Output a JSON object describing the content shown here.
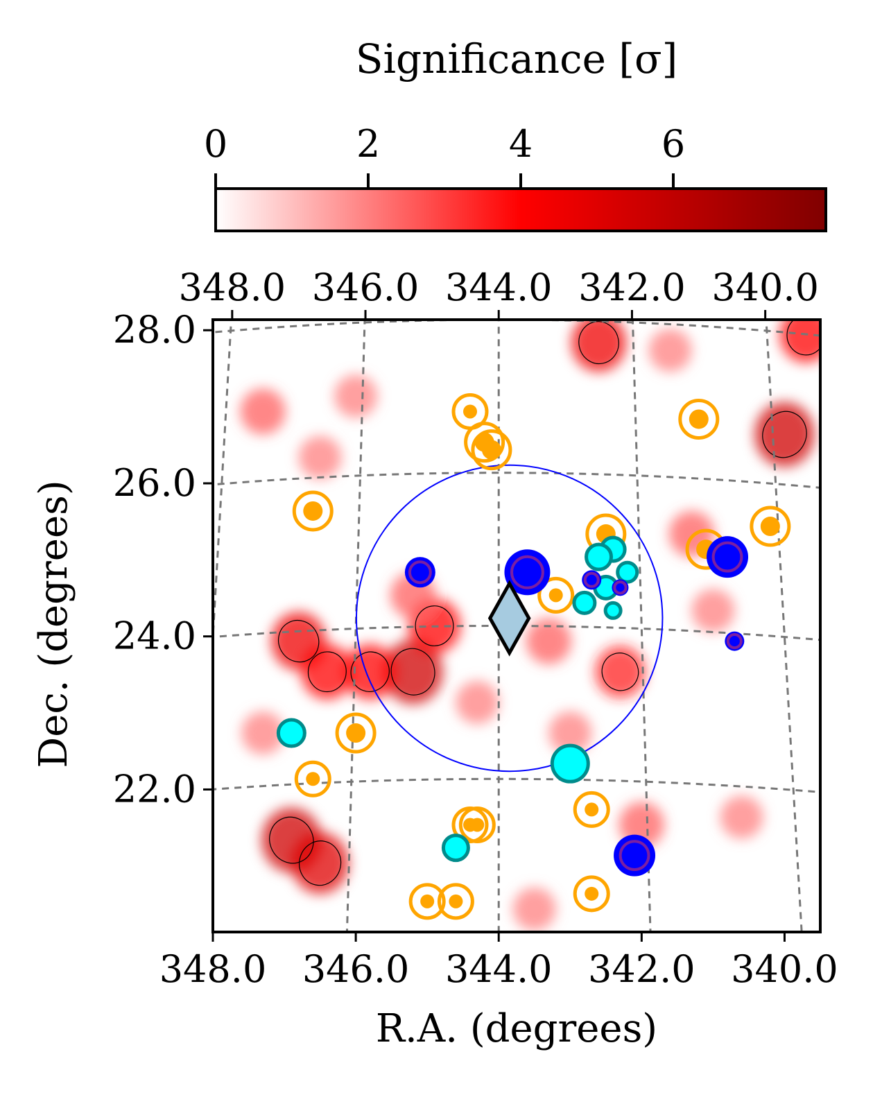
{
  "chart_data": {
    "type": "scatter",
    "colorbar": {
      "label": "Significance [σ]",
      "range": [
        0,
        8
      ],
      "ticks": [
        0,
        2,
        4,
        6
      ],
      "colors": [
        "#ffffff",
        "#ff0000",
        "#800000"
      ]
    },
    "xlabel": "R.A. (degrees)",
    "ylabel": "Dec. (degrees)",
    "xlim": [
      348.0,
      339.5
    ],
    "ylim": [
      20.0,
      28.0
    ],
    "bottom_ticks": [
      "348.0",
      "346.0",
      "344.0",
      "342.0",
      "340.0"
    ],
    "top_ticks": [
      "348.0",
      "346.0",
      "344.0",
      "342.0",
      "340.0"
    ],
    "yticks": [
      "22.0",
      "24.0",
      "26.0",
      "28.0"
    ],
    "grid": true,
    "significance_blobs": [
      {
        "ra": 346.8,
        "dec": 23.8,
        "level": 4.5,
        "contour": true
      },
      {
        "ra": 346.4,
        "dec": 23.4,
        "level": 4.0,
        "contour": true
      },
      {
        "ra": 345.2,
        "dec": 23.4,
        "level": 5.5,
        "contour": true
      },
      {
        "ra": 345.8,
        "dec": 23.4,
        "level": 4.0,
        "contour": true
      },
      {
        "ra": 344.9,
        "dec": 24.0,
        "level": 4.0,
        "contour": true
      },
      {
        "ra": 346.9,
        "dec": 21.2,
        "level": 5.5,
        "contour": true
      },
      {
        "ra": 346.5,
        "dec": 20.9,
        "level": 5.0,
        "contour": true
      },
      {
        "ra": 342.6,
        "dec": 27.7,
        "level": 4.5,
        "contour": true
      },
      {
        "ra": 340.0,
        "dec": 26.5,
        "level": 5.5,
        "contour": true
      },
      {
        "ra": 339.7,
        "dec": 27.8,
        "level": 4.0,
        "contour": true
      },
      {
        "ra": 342.3,
        "dec": 23.4,
        "level": 3.5,
        "contour": true
      },
      {
        "ra": 346.5,
        "dec": 26.2,
        "level": 2.0,
        "contour": false
      },
      {
        "ra": 347.3,
        "dec": 26.8,
        "level": 2.5,
        "contour": false
      },
      {
        "ra": 345.2,
        "dec": 24.4,
        "level": 2.5,
        "contour": false
      },
      {
        "ra": 343.3,
        "dec": 23.8,
        "level": 2.5,
        "contour": false
      },
      {
        "ra": 343.0,
        "dec": 22.6,
        "level": 2.0,
        "contour": false
      },
      {
        "ra": 341.3,
        "dec": 25.2,
        "level": 2.5,
        "contour": false
      },
      {
        "ra": 342.0,
        "dec": 21.4,
        "level": 2.5,
        "contour": false
      },
      {
        "ra": 341.0,
        "dec": 24.2,
        "level": 2.0,
        "contour": false
      },
      {
        "ra": 344.3,
        "dec": 23.0,
        "level": 2.0,
        "contour": false
      },
      {
        "ra": 346.0,
        "dec": 27.0,
        "level": 2.0,
        "contour": false
      },
      {
        "ra": 340.6,
        "dec": 21.5,
        "level": 2.0,
        "contour": false
      },
      {
        "ra": 341.6,
        "dec": 27.6,
        "level": 2.0,
        "contour": false
      },
      {
        "ra": 347.3,
        "dec": 22.6,
        "level": 2.0,
        "contour": false
      },
      {
        "ra": 343.5,
        "dec": 20.3,
        "level": 2.0,
        "contour": false
      }
    ],
    "region_circle": {
      "ra": 343.85,
      "dec": 24.1,
      "radius_deg": 2.0,
      "color": "#0000ff"
    },
    "diamond": {
      "ra": 343.85,
      "dec": 24.1,
      "fill": "#a6cbe0",
      "stroke": "#000000"
    },
    "orange_sources": [
      {
        "ra": 344.4,
        "dec": 26.8,
        "size": "small"
      },
      {
        "ra": 344.2,
        "dec": 26.4,
        "size": "large"
      },
      {
        "ra": 344.1,
        "dec": 26.3,
        "size": "large"
      },
      {
        "ra": 341.2,
        "dec": 26.7,
        "size": "large"
      },
      {
        "ra": 346.6,
        "dec": 25.5,
        "size": "large"
      },
      {
        "ra": 342.5,
        "dec": 25.2,
        "size": "large"
      },
      {
        "ra": 341.1,
        "dec": 25.0,
        "size": "large"
      },
      {
        "ra": 340.2,
        "dec": 25.3,
        "size": "large"
      },
      {
        "ra": 343.2,
        "dec": 24.4,
        "size": "small"
      },
      {
        "ra": 346.0,
        "dec": 22.6,
        "size": "large"
      },
      {
        "ra": 346.6,
        "dec": 22.0,
        "size": "small"
      },
      {
        "ra": 342.7,
        "dec": 21.6,
        "size": "small"
      },
      {
        "ra": 344.4,
        "dec": 21.4,
        "size": "small"
      },
      {
        "ra": 344.3,
        "dec": 21.4,
        "size": "small"
      },
      {
        "ra": 345.0,
        "dec": 20.4,
        "size": "small"
      },
      {
        "ra": 344.6,
        "dec": 20.4,
        "size": "small"
      },
      {
        "ra": 342.7,
        "dec": 20.5,
        "size": "small"
      }
    ],
    "cyan_sources": [
      {
        "ra": 342.4,
        "dec": 25.0,
        "size": 17
      },
      {
        "ra": 342.6,
        "dec": 24.9,
        "size": 18
      },
      {
        "ra": 342.2,
        "dec": 24.7,
        "size": 14
      },
      {
        "ra": 342.5,
        "dec": 24.5,
        "size": 16
      },
      {
        "ra": 342.8,
        "dec": 24.3,
        "size": 15
      },
      {
        "ra": 342.4,
        "dec": 24.2,
        "size": 11
      },
      {
        "ra": 346.9,
        "dec": 22.6,
        "size": 19
      },
      {
        "ra": 343.0,
        "dec": 22.2,
        "size": 26
      },
      {
        "ra": 344.6,
        "dec": 21.1,
        "size": 18
      }
    ],
    "blue_sources": [
      {
        "ra": 345.1,
        "dec": 24.7,
        "size": 22
      },
      {
        "ra": 343.6,
        "dec": 24.7,
        "size": 33
      },
      {
        "ra": 342.7,
        "dec": 24.6,
        "size": 14
      },
      {
        "ra": 342.3,
        "dec": 24.5,
        "size": 12
      },
      {
        "ra": 340.8,
        "dec": 24.9,
        "size": 30
      },
      {
        "ra": 340.7,
        "dec": 23.8,
        "size": 14
      },
      {
        "ra": 342.1,
        "dec": 21.0,
        "size": 30
      }
    ]
  }
}
